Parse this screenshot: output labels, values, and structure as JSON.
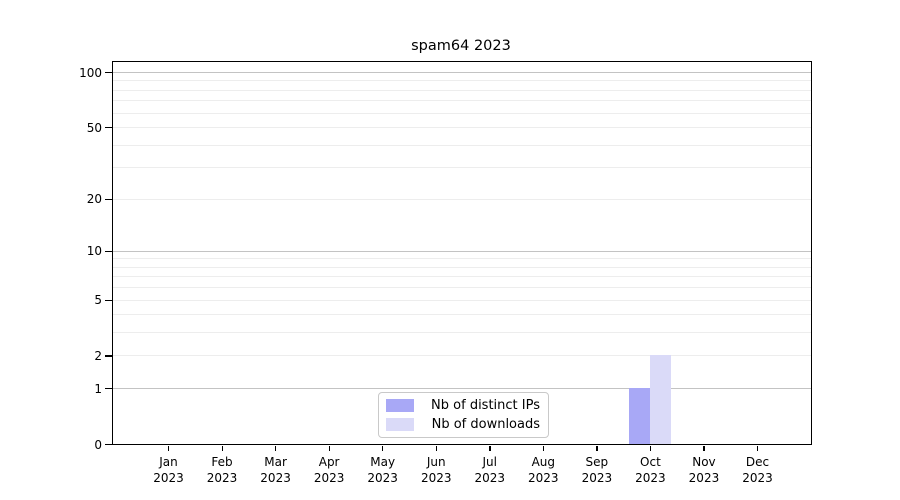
{
  "title": "spam64 2023",
  "chart_data": {
    "type": "bar",
    "title": "spam64 2023",
    "xlabel": "",
    "ylabel": "",
    "grid": "on",
    "legend_position": "lower center inside plot",
    "yscale": "log-like (log10(1+y)), 0 at baseline",
    "ylim": [
      0,
      113
    ],
    "categories": [
      "Jan",
      "Feb",
      "Mar",
      "Apr",
      "May",
      "Jun",
      "Jul",
      "Aug",
      "Sep",
      "Oct",
      "Nov",
      "Dec"
    ],
    "tick_year": "2023",
    "yticks": [
      0,
      1,
      2,
      5,
      10,
      20,
      50,
      100
    ],
    "ytick_labels": [
      "0",
      "1",
      "2",
      "5",
      "10",
      "20",
      "50",
      "100"
    ],
    "major_gridlines": [
      1,
      10,
      100
    ],
    "minor_gridlines": [
      2,
      3,
      4,
      5,
      6,
      7,
      8,
      9,
      20,
      30,
      40,
      50,
      60,
      70,
      80,
      90
    ],
    "series": [
      {
        "name": "Nb of distinct IPs",
        "color": "#a8a8f6",
        "values": [
          0,
          0,
          0,
          0,
          0,
          0,
          0,
          0,
          0,
          1,
          0,
          0
        ]
      },
      {
        "name": "Nb of downloads",
        "color": "#dadaf8",
        "values": [
          0,
          0,
          0,
          0,
          0,
          0,
          0,
          0,
          0,
          2,
          0,
          0
        ]
      }
    ]
  },
  "legend": {
    "item1": "Nb of distinct IPs",
    "item2": "Nb of downloads"
  }
}
